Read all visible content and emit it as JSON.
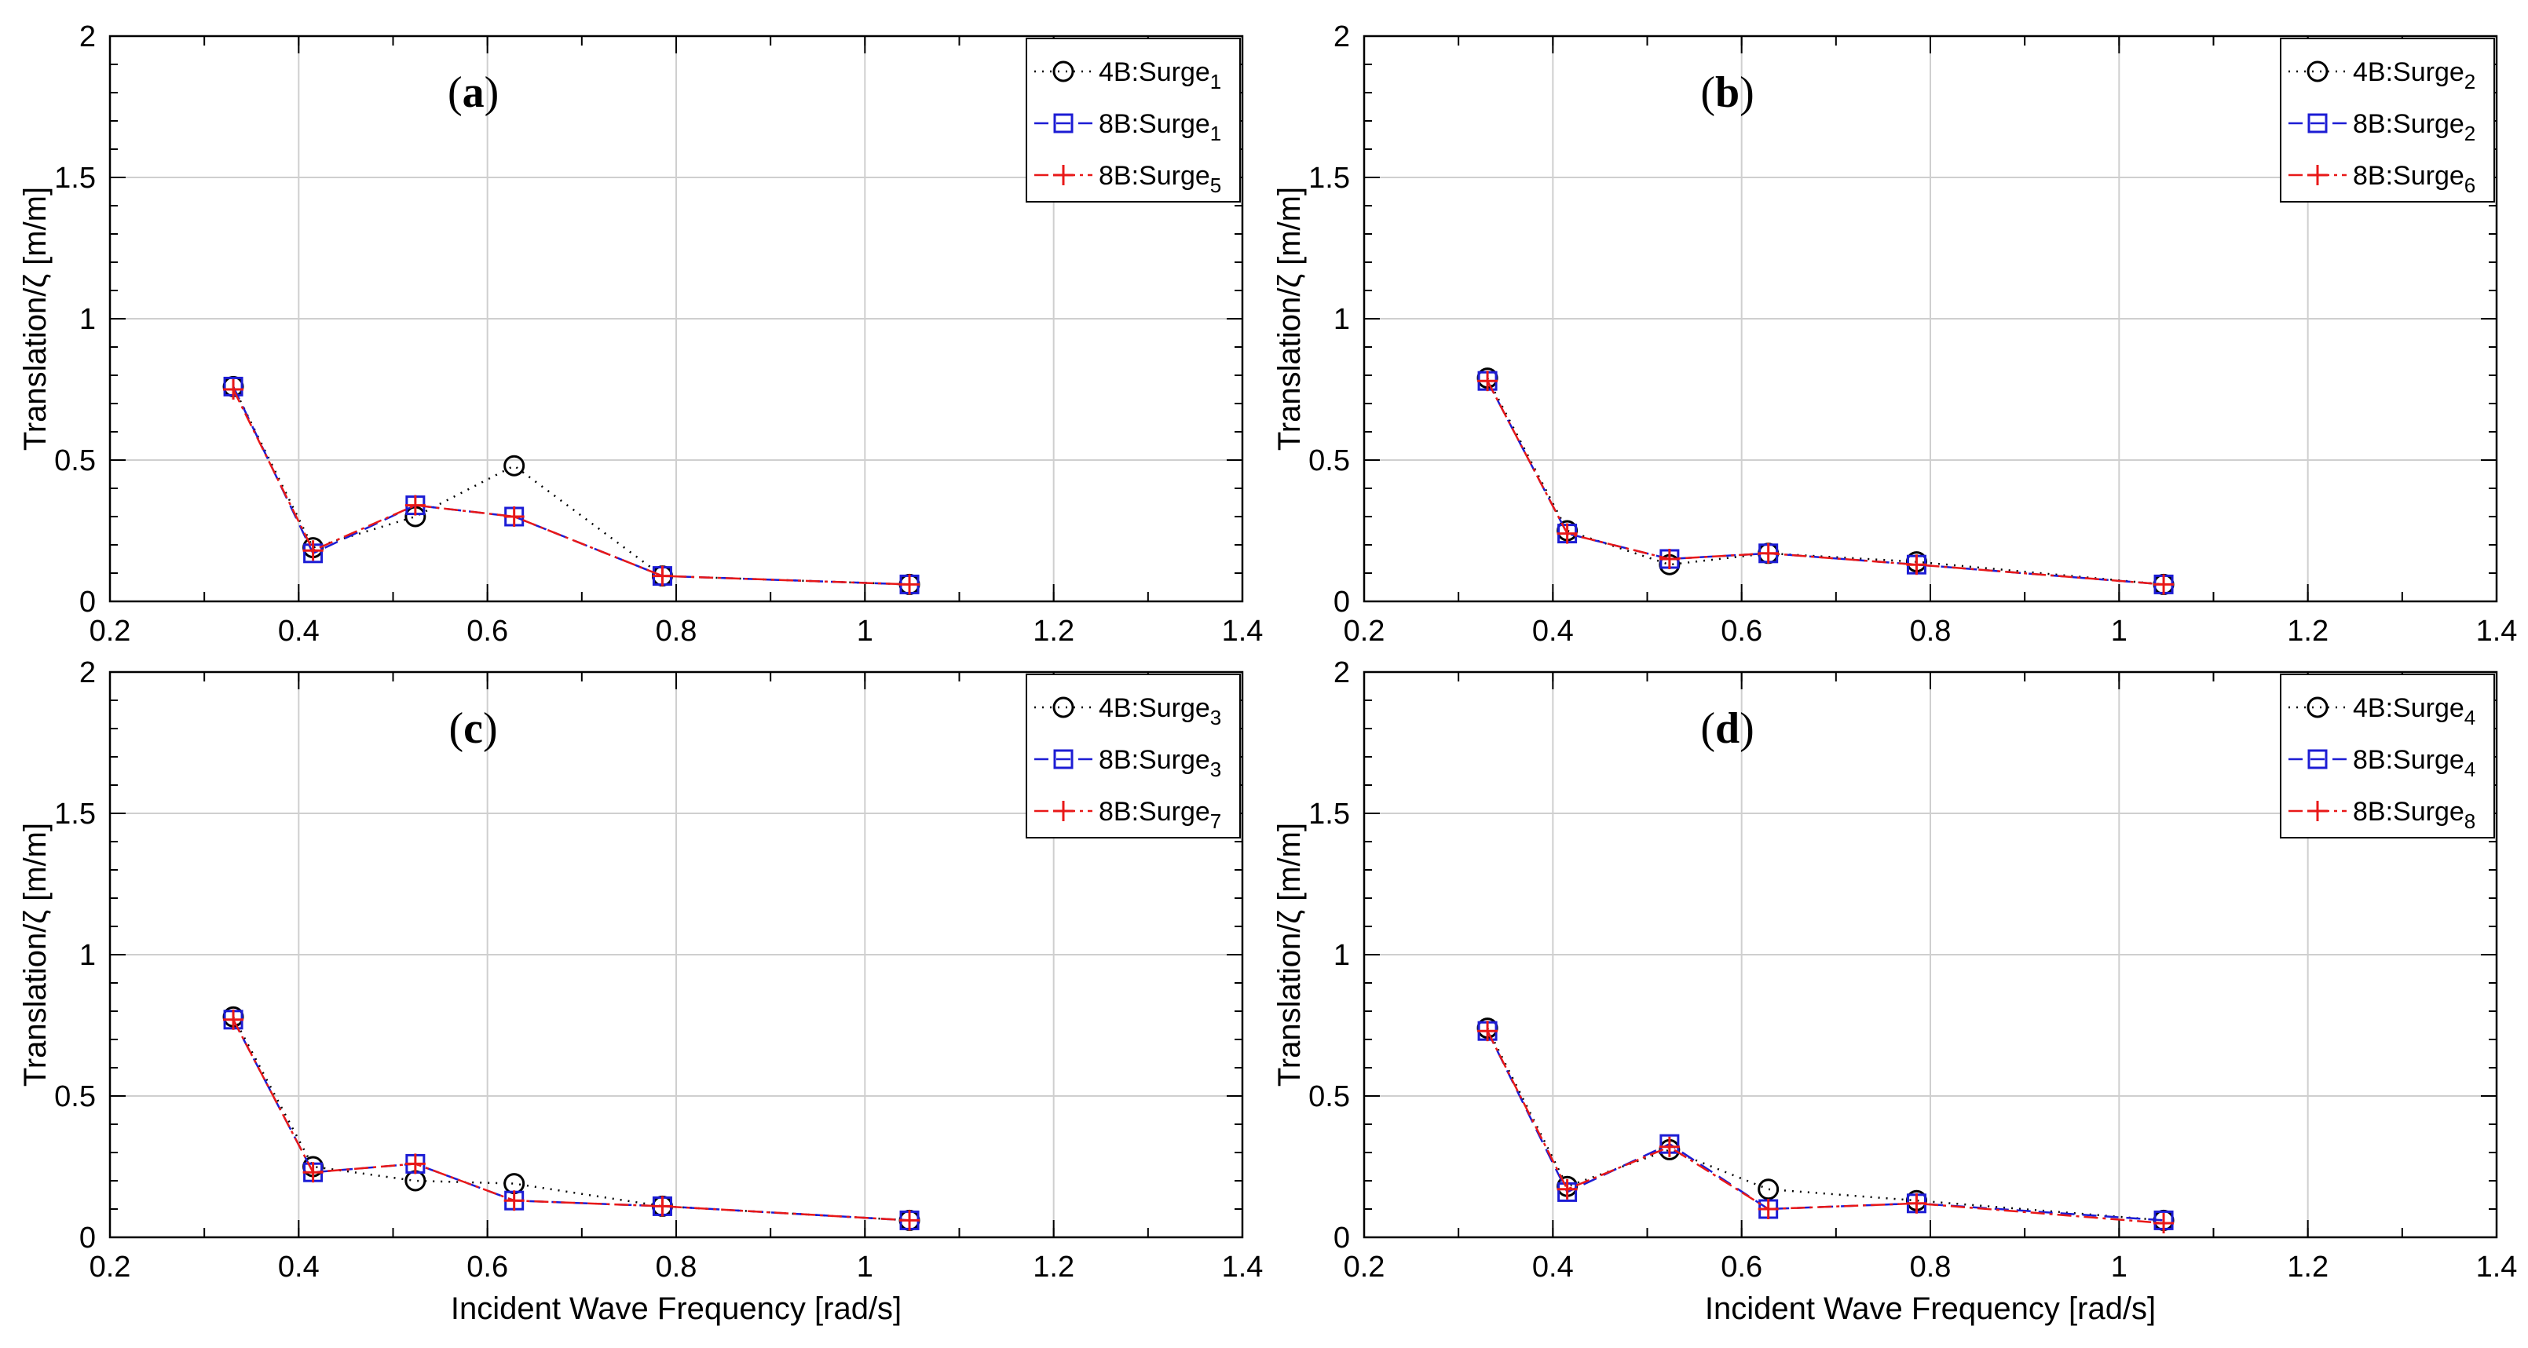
{
  "figure": {
    "xlabel": "Incident Wave Frequency [rad/s]",
    "ylabel": "Translation/ζ [m/m]"
  },
  "styles": {
    "series_colors": [
      "#000000",
      "#1c1cd4",
      "#e81818"
    ],
    "series_markers": [
      "circle",
      "square",
      "plus"
    ],
    "series_dashes": [
      "2,8",
      "18,10",
      "18,6,4,6"
    ]
  },
  "chart_data": [
    {
      "type": "line",
      "title": "(a)",
      "panel_letter": "a",
      "xlabel": "Incident Wave Frequency [rad/s]",
      "ylabel": "Translation/ζ [m/m]",
      "xlim": [
        0.2,
        1.4
      ],
      "ylim": [
        0,
        2
      ],
      "x_ticks": [
        "0.2",
        "0.4",
        "0.6",
        "0.8",
        "1",
        "1.2",
        "1.4"
      ],
      "y_ticks": [
        "0",
        "0.5",
        "1",
        "1.5",
        "2"
      ],
      "grid": true,
      "legend_position": "top-right",
      "x": [
        0.3307,
        0.4152,
        0.5236,
        0.6283,
        0.7854,
        1.0472
      ],
      "series": [
        {
          "name": "4B:Surge",
          "subscript": "1",
          "values": [
            0.76,
            0.19,
            0.3,
            0.48,
            0.09,
            0.06
          ]
        },
        {
          "name": "8B:Surge",
          "subscript": "1",
          "values": [
            0.76,
            0.17,
            0.34,
            0.3,
            0.09,
            0.06
          ]
        },
        {
          "name": "8B:Surge",
          "subscript": "5",
          "values": [
            0.75,
            0.18,
            0.34,
            0.3,
            0.09,
            0.06
          ]
        }
      ]
    },
    {
      "type": "line",
      "title": "(b)",
      "panel_letter": "b",
      "xlabel": "Incident Wave Frequency [rad/s]",
      "ylabel": "Translation/ζ [m/m]",
      "xlim": [
        0.2,
        1.4
      ],
      "ylim": [
        0,
        2
      ],
      "x_ticks": [
        "0.2",
        "0.4",
        "0.6",
        "0.8",
        "1",
        "1.2",
        "1.4"
      ],
      "y_ticks": [
        "0",
        "0.5",
        "1",
        "1.5",
        "2"
      ],
      "grid": true,
      "legend_position": "top-right",
      "x": [
        0.3307,
        0.4152,
        0.5236,
        0.6283,
        0.7854,
        1.0472
      ],
      "series": [
        {
          "name": "4B:Surge",
          "subscript": "2",
          "values": [
            0.79,
            0.25,
            0.13,
            0.17,
            0.14,
            0.06
          ]
        },
        {
          "name": "8B:Surge",
          "subscript": "2",
          "values": [
            0.78,
            0.24,
            0.15,
            0.17,
            0.13,
            0.06
          ]
        },
        {
          "name": "8B:Surge",
          "subscript": "6",
          "values": [
            0.78,
            0.24,
            0.15,
            0.17,
            0.13,
            0.06
          ]
        }
      ]
    },
    {
      "type": "line",
      "title": "(c)",
      "panel_letter": "c",
      "xlabel": "Incident Wave Frequency [rad/s]",
      "ylabel": "Translation/ζ [m/m]",
      "xlim": [
        0.2,
        1.4
      ],
      "ylim": [
        0,
        2
      ],
      "x_ticks": [
        "0.2",
        "0.4",
        "0.6",
        "0.8",
        "1",
        "1.2",
        "1.4"
      ],
      "y_ticks": [
        "0",
        "0.5",
        "1",
        "1.5",
        "2"
      ],
      "grid": true,
      "legend_position": "top-right",
      "x": [
        0.3307,
        0.4152,
        0.5236,
        0.6283,
        0.7854,
        1.0472
      ],
      "series": [
        {
          "name": "4B:Surge",
          "subscript": "3",
          "values": [
            0.78,
            0.25,
            0.2,
            0.19,
            0.11,
            0.06
          ]
        },
        {
          "name": "8B:Surge",
          "subscript": "3",
          "values": [
            0.77,
            0.23,
            0.26,
            0.13,
            0.11,
            0.06
          ]
        },
        {
          "name": "8B:Surge",
          "subscript": "7",
          "values": [
            0.77,
            0.23,
            0.26,
            0.13,
            0.11,
            0.06
          ]
        }
      ]
    },
    {
      "type": "line",
      "title": "(d)",
      "panel_letter": "d",
      "xlabel": "Incident Wave Frequency [rad/s]",
      "ylabel": "Translation/ζ [m/m]",
      "xlim": [
        0.2,
        1.4
      ],
      "ylim": [
        0,
        2
      ],
      "x_ticks": [
        "0.2",
        "0.4",
        "0.6",
        "0.8",
        "1",
        "1.2",
        "1.4"
      ],
      "y_ticks": [
        "0",
        "0.5",
        "1",
        "1.5",
        "2"
      ],
      "grid": true,
      "legend_position": "top-right",
      "x": [
        0.3307,
        0.4152,
        0.5236,
        0.6283,
        0.7854,
        1.0472
      ],
      "series": [
        {
          "name": "4B:Surge",
          "subscript": "4",
          "values": [
            0.74,
            0.18,
            0.31,
            0.17,
            0.13,
            0.06
          ]
        },
        {
          "name": "8B:Surge",
          "subscript": "4",
          "values": [
            0.73,
            0.16,
            0.33,
            0.1,
            0.12,
            0.06
          ]
        },
        {
          "name": "8B:Surge",
          "subscript": "8",
          "values": [
            0.73,
            0.17,
            0.32,
            0.1,
            0.12,
            0.05
          ]
        }
      ]
    }
  ]
}
